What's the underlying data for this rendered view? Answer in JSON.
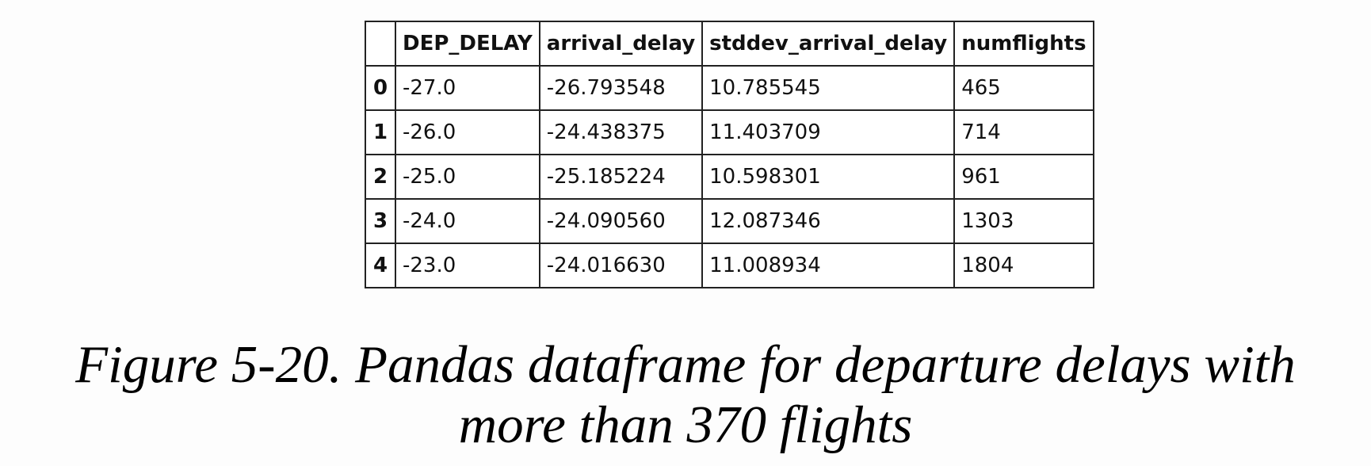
{
  "table": {
    "columns": [
      "",
      "DEP_DELAY",
      "arrival_delay",
      "stddev_arrival_delay",
      "numflights"
    ],
    "rows": [
      {
        "index": "0",
        "DEP_DELAY": "-27.0",
        "arrival_delay": "-26.793548",
        "stddev_arrival_delay": "10.785545",
        "numflights": "465"
      },
      {
        "index": "1",
        "DEP_DELAY": "-26.0",
        "arrival_delay": "-24.438375",
        "stddev_arrival_delay": "11.403709",
        "numflights": "714"
      },
      {
        "index": "2",
        "DEP_DELAY": "-25.0",
        "arrival_delay": "-25.185224",
        "stddev_arrival_delay": "10.598301",
        "numflights": "961"
      },
      {
        "index": "3",
        "DEP_DELAY": "-24.0",
        "arrival_delay": "-24.090560",
        "stddev_arrival_delay": "12.087346",
        "numflights": "1303"
      },
      {
        "index": "4",
        "DEP_DELAY": "-23.0",
        "arrival_delay": "-24.016630",
        "stddev_arrival_delay": "11.008934",
        "numflights": "1804"
      }
    ]
  },
  "caption": {
    "line1": "Figure 5-20. Pandas dataframe for departure delays with",
    "line2": "more than 370 flights"
  }
}
